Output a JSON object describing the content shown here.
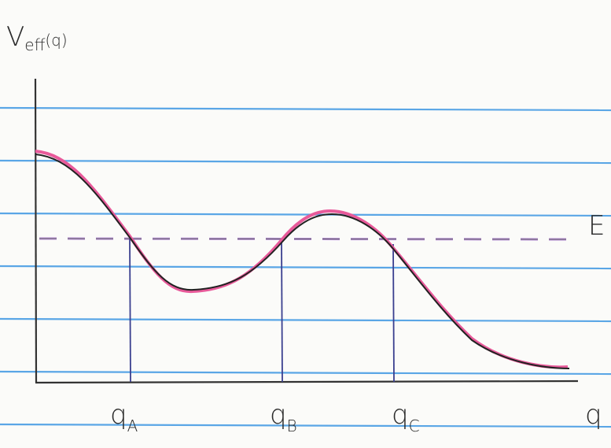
{
  "y_axis_label": {
    "base": "V",
    "sub": "eff",
    "arg": "(q)"
  },
  "energy_label": "E",
  "turning_points": [
    {
      "base": "q",
      "sub": "A"
    },
    {
      "base": "q",
      "sub": "B"
    },
    {
      "base": "q",
      "sub": "C"
    }
  ],
  "x_axis_label": "q"
}
